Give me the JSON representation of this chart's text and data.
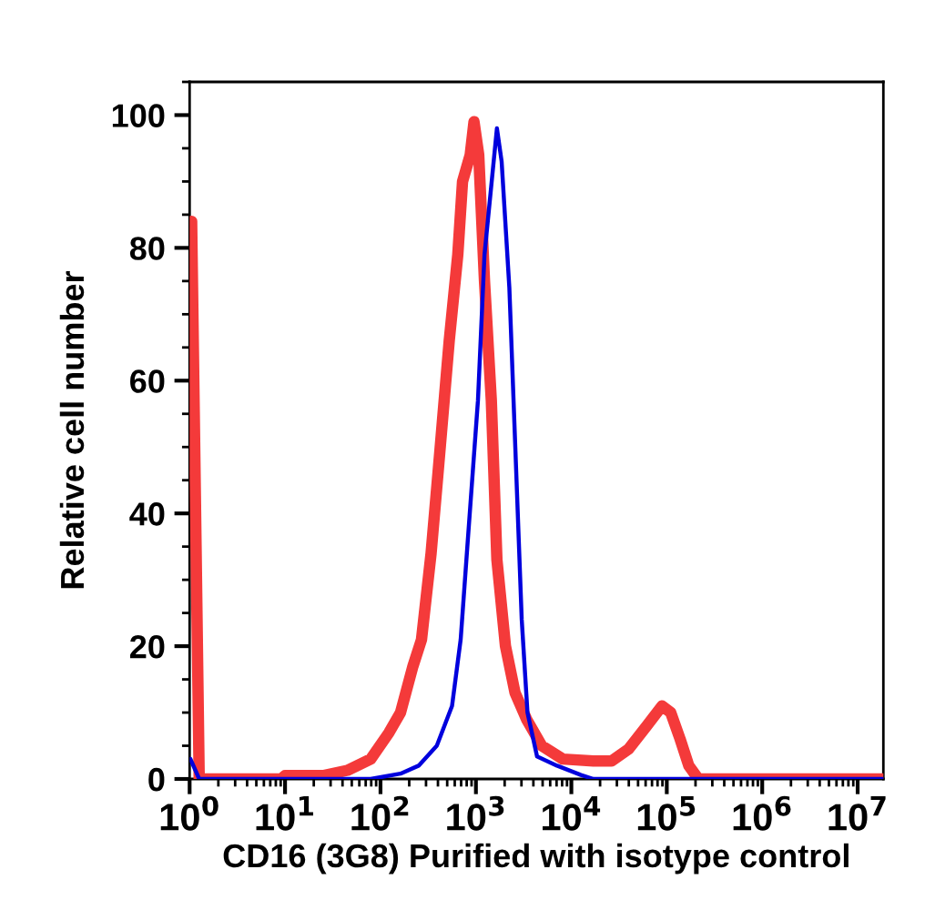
{
  "chart_data": {
    "type": "line",
    "xlabel": "CD16 (3G8) Purified with isotype control",
    "ylabel": "Relative cell number",
    "log": "x",
    "xlim": [
      1,
      18600000
    ],
    "ylim": [
      0,
      105
    ],
    "xticks": [
      {
        "value": 1,
        "label": "10$^{0}$"
      },
      {
        "value": 10,
        "label": "10$^{1}$"
      },
      {
        "value": 100,
        "label": "10$^{2}$"
      },
      {
        "value": 1000,
        "label": "10$^{3}$"
      },
      {
        "value": 10000,
        "label": "10$^{4}$"
      },
      {
        "value": 100000,
        "label": "10$^{5}$"
      },
      {
        "value": 1000000,
        "label": "10$^{6}$"
      },
      {
        "value": 10000000,
        "label": "10$^{7}$"
      }
    ],
    "yticks": [
      0,
      20,
      40,
      60,
      80,
      100
    ],
    "grid": false,
    "series": [
      {
        "color": "#0000dd",
        "x": [
          1.02,
          1.26,
          79,
          162,
          251,
          389,
          562,
          692,
          813,
          1050,
          1230,
          1660,
          1860,
          2240,
          2570,
          3020,
          3470,
          4370,
          7080,
          12600,
          17000,
          18600000
        ],
        "values": [
          3,
          0,
          0,
          0.8,
          2,
          5,
          11,
          21,
          35,
          57,
          79,
          98,
          93,
          74,
          51,
          24,
          10,
          3.4,
          2,
          0.6,
          0,
          0
        ]
      },
      {
        "color": "#f43a3a",
        "x": [
          1.05,
          1.26,
          9.1,
          10,
          25,
          45,
          79,
          123,
          162,
          219,
          269,
          339,
          417,
          525,
          646,
          724,
          871,
          955,
          1070,
          1230,
          1450,
          1660,
          2040,
          2570,
          3390,
          4900,
          8130,
          17000,
          26300,
          39800,
          61700,
          89100,
          110000,
          138000,
          170000,
          214000,
          18600000
        ],
        "values": [
          84,
          0,
          0,
          0.5,
          0.5,
          1.3,
          3,
          7,
          10,
          17,
          21,
          34,
          49,
          66,
          79,
          90,
          94,
          99,
          94,
          75,
          57,
          33,
          20,
          13,
          9,
          5,
          3,
          2.7,
          2.7,
          4.5,
          8,
          11,
          10,
          6,
          2,
          0,
          0
        ]
      }
    ]
  }
}
